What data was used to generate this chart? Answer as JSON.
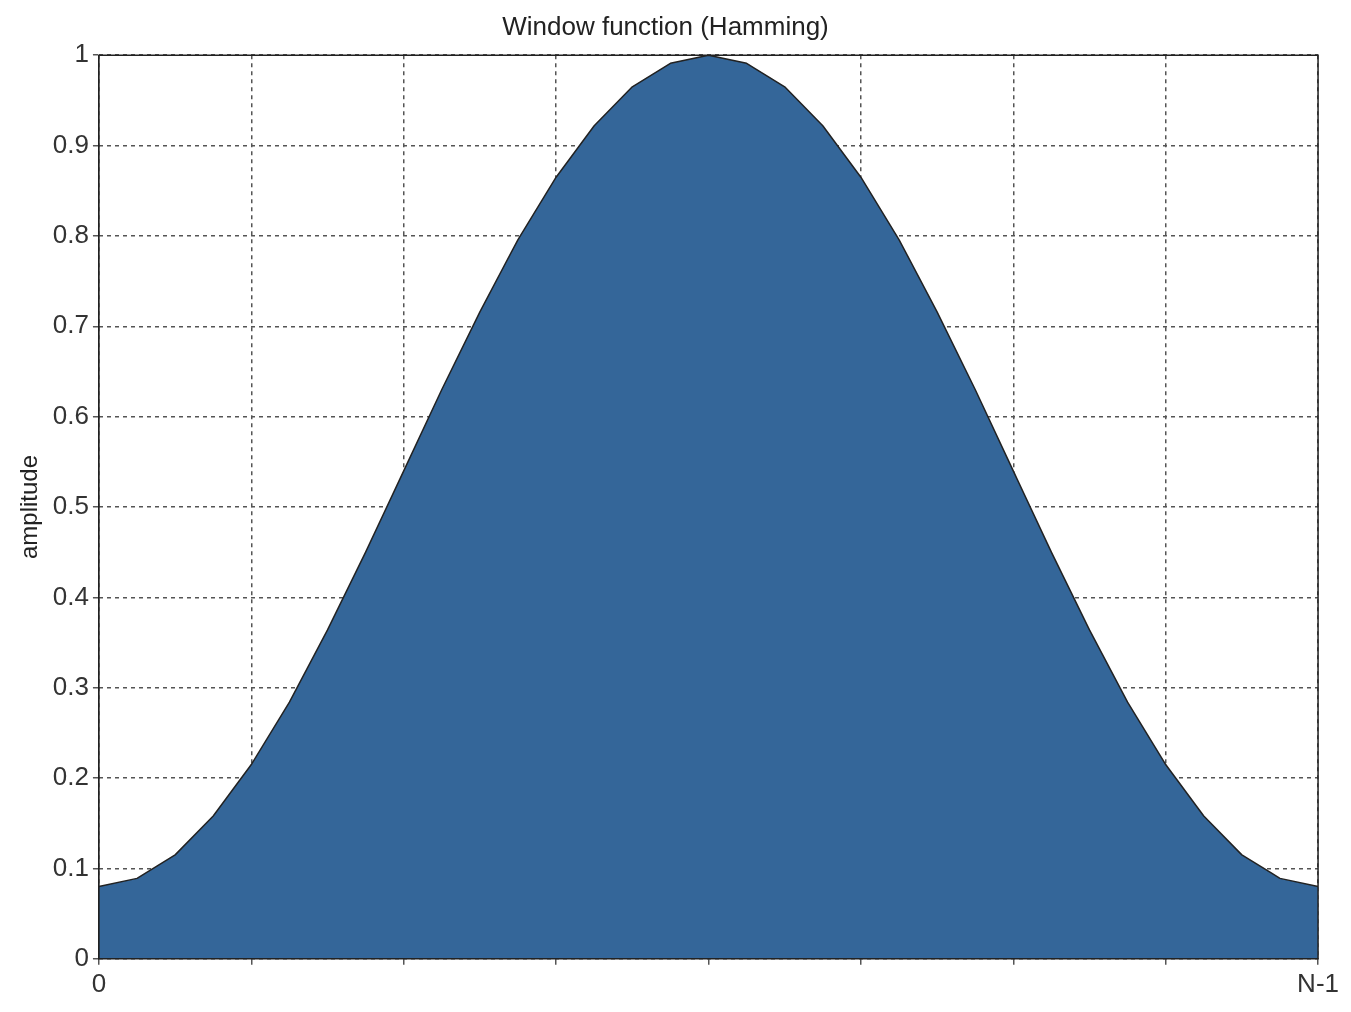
{
  "chart_data": {
    "type": "area",
    "title": "Window function (Hamming)",
    "ylabel": "amplitude",
    "categories": [
      "0",
      null,
      null,
      null,
      null,
      null,
      null,
      null,
      null,
      null,
      null,
      null,
      null,
      null,
      null,
      null,
      null,
      null,
      null,
      null,
      null,
      null,
      null,
      null,
      null,
      null,
      null,
      null,
      null,
      null,
      null,
      null,
      "N-1"
    ],
    "values": [
      0.08,
      0.089,
      0.115,
      0.158,
      0.215,
      0.284,
      0.364,
      0.45,
      0.54,
      0.63,
      0.716,
      0.796,
      0.865,
      0.922,
      0.965,
      0.991,
      1,
      0.991,
      0.965,
      0.922,
      0.865,
      0.796,
      0.716,
      0.63,
      0.54,
      0.45,
      0.364,
      0.284,
      0.215,
      0.158,
      0.115,
      0.089,
      0.08
    ],
    "color": "#346699",
    "ylim": [
      0,
      1
    ],
    "yticks": [
      0,
      0.1,
      0.2,
      0.3,
      0.4,
      0.5,
      0.6,
      0.7,
      0.8,
      0.9,
      1
    ],
    "grid": true
  }
}
